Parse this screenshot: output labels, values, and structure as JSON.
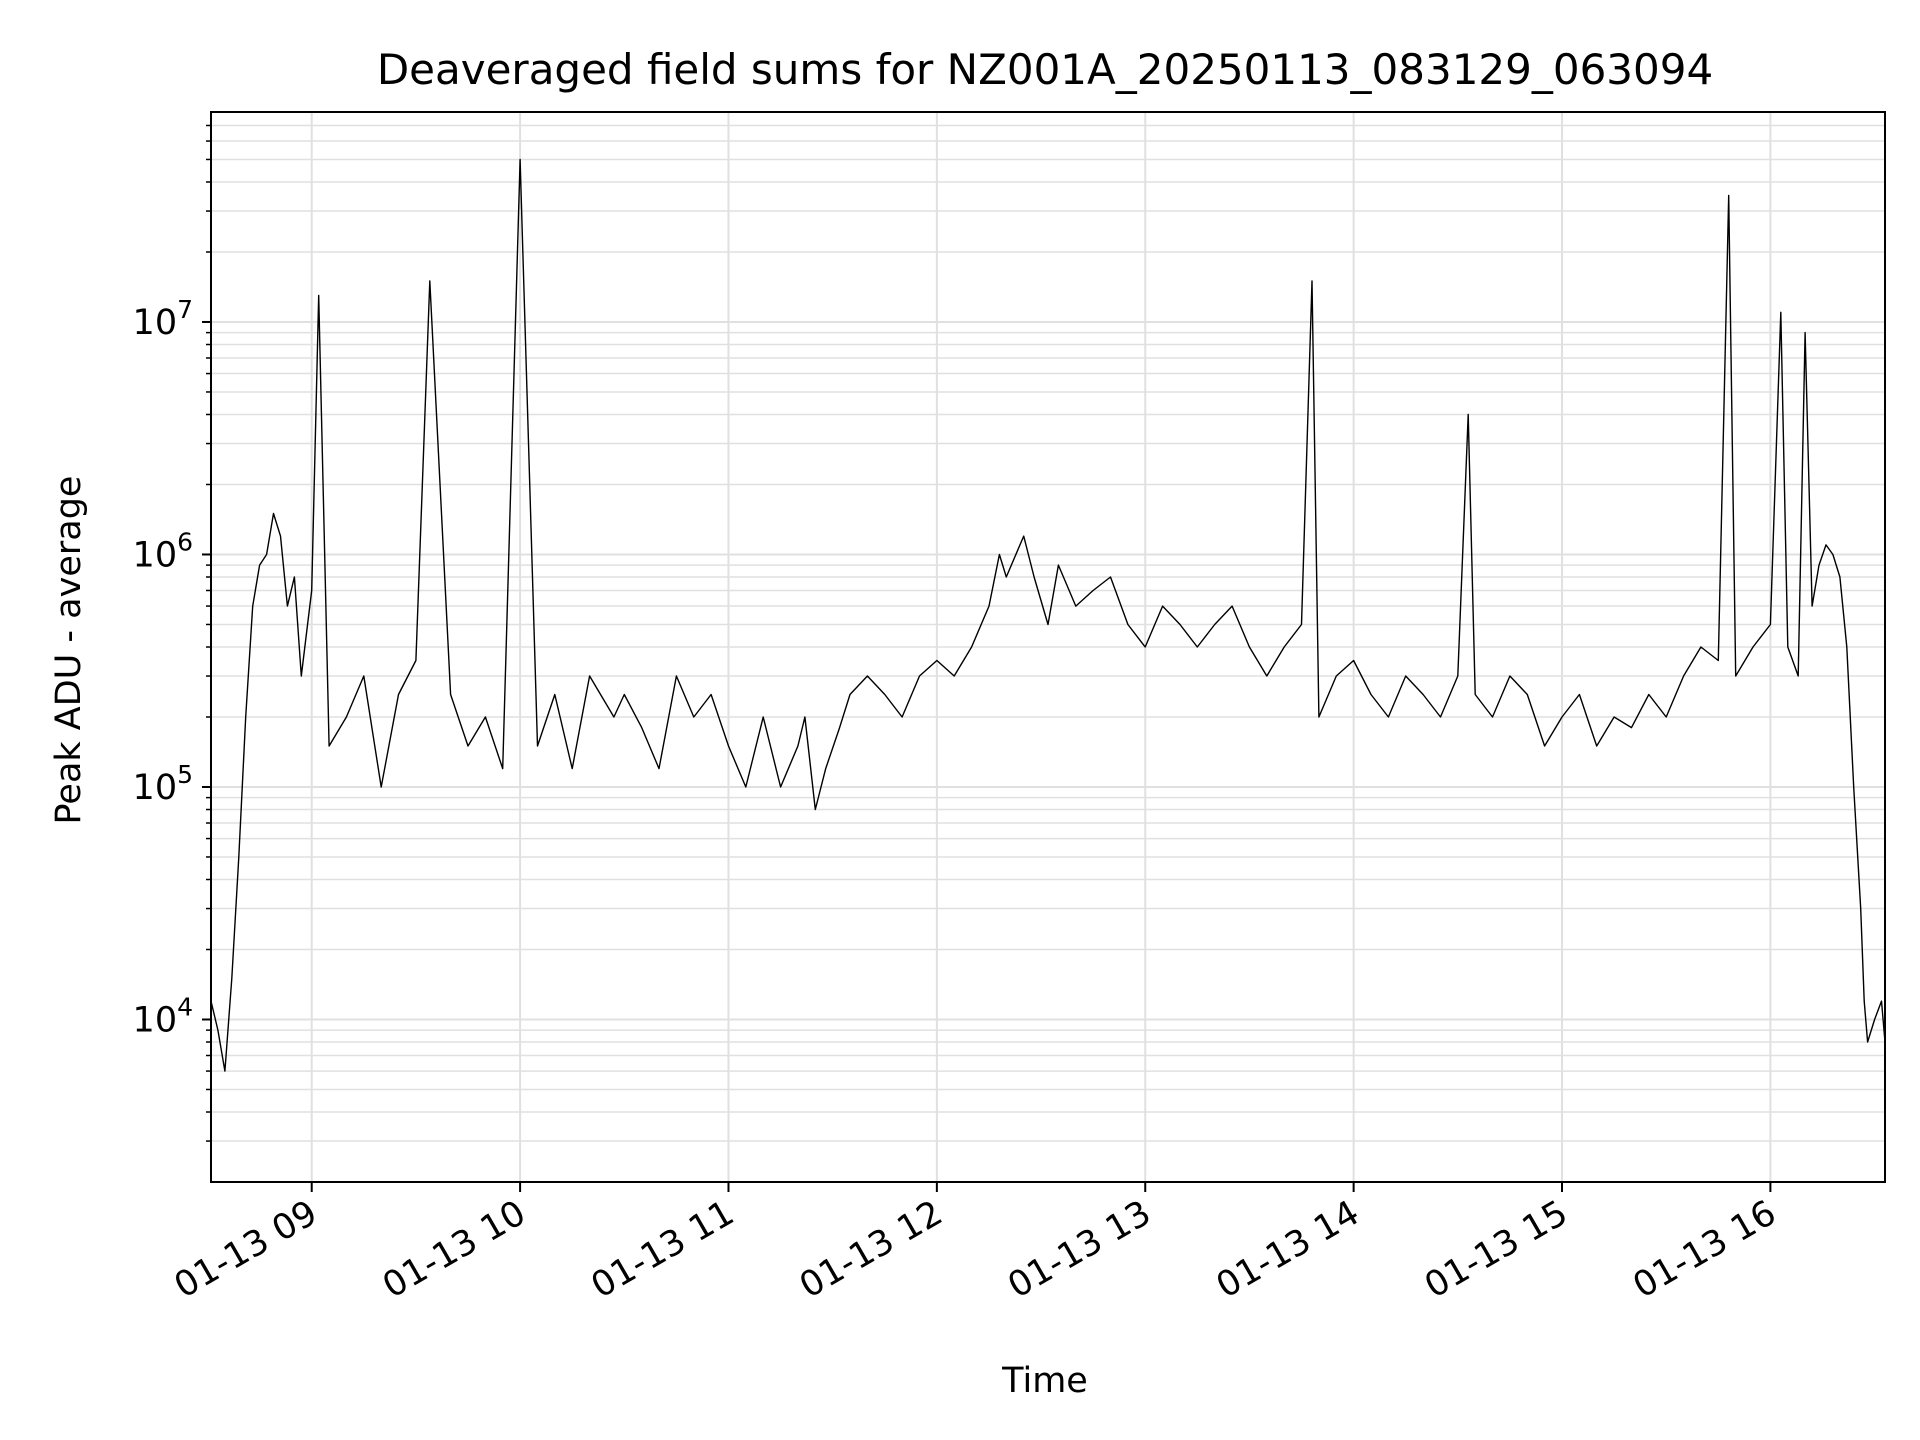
{
  "chart_data": {
    "type": "line",
    "title": "Deaveraged field sums for NZ001A_20250113_083129_063094",
    "xlabel": "Time",
    "ylabel": "Peak ADU - average",
    "x_scale": "time",
    "y_scale": "log",
    "xlim": [
      "01-13 08:31",
      "01-13 16:33"
    ],
    "ylim": [
      2000,
      80000000
    ],
    "grid": true,
    "legend": "none",
    "line_color": "#000000",
    "grid_color": "#e0e0e0",
    "x_ticks": [
      "01-13 09",
      "01-13 10",
      "01-13 11",
      "01-13 12",
      "01-13 13",
      "01-13 14",
      "01-13 15",
      "01-13 16"
    ],
    "y_ticks": [
      {
        "value": 10000,
        "base": "10",
        "exp": "4"
      },
      {
        "value": 100000,
        "base": "10",
        "exp": "5"
      },
      {
        "value": 1000000,
        "base": "10",
        "exp": "6"
      },
      {
        "value": 10000000,
        "base": "10",
        "exp": "7"
      }
    ],
    "series": [
      {
        "x": [
          "01-13 08:31",
          "01-13 08:33",
          "01-13 08:35",
          "01-13 08:37",
          "01-13 08:39",
          "01-13 08:41",
          "01-13 08:43",
          "01-13 08:45",
          "01-13 08:47",
          "01-13 08:49",
          "01-13 08:51",
          "01-13 08:53",
          "01-13 08:55",
          "01-13 08:57",
          "01-13 09:00",
          "01-13 09:02",
          "01-13 09:05",
          "01-13 09:10",
          "01-13 09:15",
          "01-13 09:20",
          "01-13 09:25",
          "01-13 09:30",
          "01-13 09:34",
          "01-13 09:40",
          "01-13 09:45",
          "01-13 09:50",
          "01-13 09:55",
          "01-13 10:00",
          "01-13 10:05",
          "01-13 10:10",
          "01-13 10:15",
          "01-13 10:20",
          "01-13 10:27",
          "01-13 10:30",
          "01-13 10:35",
          "01-13 10:40",
          "01-13 10:45",
          "01-13 10:50",
          "01-13 10:55",
          "01-13 11:00",
          "01-13 11:05",
          "01-13 11:10",
          "01-13 11:15",
          "01-13 11:20",
          "01-13 11:22",
          "01-13 11:25",
          "01-13 11:28",
          "01-13 11:32",
          "01-13 11:35",
          "01-13 11:40",
          "01-13 11:45",
          "01-13 11:50",
          "01-13 11:55",
          "01-13 12:00",
          "01-13 12:05",
          "01-13 12:10",
          "01-13 12:15",
          "01-13 12:18",
          "01-13 12:20",
          "01-13 12:25",
          "01-13 12:28",
          "01-13 12:32",
          "01-13 12:35",
          "01-13 12:40",
          "01-13 12:45",
          "01-13 12:50",
          "01-13 12:55",
          "01-13 13:00",
          "01-13 13:05",
          "01-13 13:10",
          "01-13 13:15",
          "01-13 13:20",
          "01-13 13:25",
          "01-13 13:30",
          "01-13 13:35",
          "01-13 13:40",
          "01-13 13:45",
          "01-13 13:48",
          "01-13 13:50",
          "01-13 13:55",
          "01-13 14:00",
          "01-13 14:05",
          "01-13 14:10",
          "01-13 14:15",
          "01-13 14:20",
          "01-13 14:25",
          "01-13 14:30",
          "01-13 14:33",
          "01-13 14:35",
          "01-13 14:40",
          "01-13 14:45",
          "01-13 14:50",
          "01-13 14:55",
          "01-13 15:00",
          "01-13 15:05",
          "01-13 15:10",
          "01-13 15:15",
          "01-13 15:20",
          "01-13 15:25",
          "01-13 15:30",
          "01-13 15:35",
          "01-13 15:40",
          "01-13 15:45",
          "01-13 15:48",
          "01-13 15:50",
          "01-13 15:55",
          "01-13 16:00",
          "01-13 16:03",
          "01-13 16:05",
          "01-13 16:08",
          "01-13 16:10",
          "01-13 16:12",
          "01-13 16:14",
          "01-13 16:16",
          "01-13 16:18",
          "01-13 16:20",
          "01-13 16:22",
          "01-13 16:24",
          "01-13 16:26",
          "01-13 16:27",
          "01-13 16:28",
          "01-13 16:30",
          "01-13 16:32",
          "01-13 16:33"
        ],
        "y": [
          12000,
          9000,
          6000,
          15000,
          50000,
          200000,
          600000,
          900000,
          1000000,
          1500000,
          1200000,
          600000,
          800000,
          300000,
          700000,
          13000000,
          150000,
          200000,
          300000,
          100000,
          250000,
          350000,
          15000000,
          250000,
          150000,
          200000,
          120000,
          50000000,
          150000,
          250000,
          120000,
          300000,
          200000,
          250000,
          180000,
          120000,
          300000,
          200000,
          250000,
          150000,
          100000,
          200000,
          100000,
          150000,
          200000,
          80000,
          120000,
          180000,
          250000,
          300000,
          250000,
          200000,
          300000,
          350000,
          300000,
          400000,
          600000,
          1000000,
          800000,
          1200000,
          800000,
          500000,
          900000,
          600000,
          700000,
          800000,
          500000,
          400000,
          600000,
          500000,
          400000,
          500000,
          600000,
          400000,
          300000,
          400000,
          500000,
          15000000,
          200000,
          300000,
          350000,
          250000,
          200000,
          300000,
          250000,
          200000,
          300000,
          4000000,
          250000,
          200000,
          300000,
          250000,
          150000,
          200000,
          250000,
          150000,
          200000,
          180000,
          250000,
          200000,
          300000,
          400000,
          350000,
          35000000,
          300000,
          400000,
          500000,
          11000000,
          400000,
          300000,
          9000000,
          600000,
          900000,
          1100000,
          1000000,
          800000,
          400000,
          100000,
          30000,
          12000,
          8000,
          10000,
          12000,
          8000
        ]
      }
    ]
  }
}
